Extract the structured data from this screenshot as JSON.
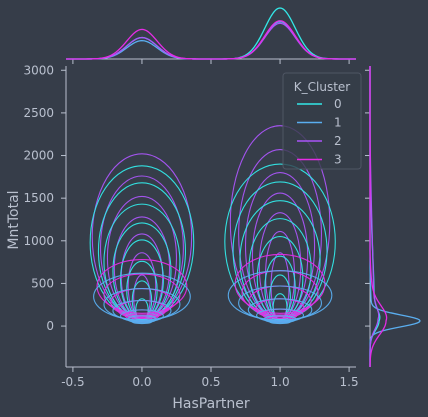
{
  "chart_data": {
    "type": "kde-contour",
    "title": "",
    "xlabel": "HasPartner",
    "ylabel": "MntTotal",
    "xlim": [
      -0.55,
      1.55
    ],
    "ylim": [
      -480,
      3050
    ],
    "x_ticks": [
      -0.5,
      0.0,
      0.5,
      1.0,
      1.5
    ],
    "y_ticks": [
      0,
      500,
      1000,
      1500,
      2000,
      2500,
      3000
    ],
    "x_tick_labels": [
      "-0.5",
      "0.0",
      "0.5",
      "1.0",
      "1.5"
    ],
    "y_tick_labels": [
      "0",
      "500",
      "1000",
      "1500",
      "2000",
      "2500",
      "3000"
    ],
    "grid": false,
    "legend": {
      "title": "K_Cluster",
      "position": "top-right",
      "entries": [
        "0",
        "1",
        "2",
        "3"
      ]
    },
    "series": [
      {
        "name": "0",
        "color": "#33e8e8",
        "groups": [
          {
            "x": 0.0,
            "levels": [
              [
                0.75,
                80,
                1880
              ],
              [
                0.63,
                80,
                1680
              ],
              [
                0.55,
                80,
                1430
              ],
              [
                0.42,
                80,
                1210
              ],
              [
                0.31,
                80,
                1010
              ],
              [
                0.22,
                80,
                760
              ],
              [
                0.14,
                80,
                530
              ],
              [
                0.09,
                60,
                320
              ]
            ]
          },
          {
            "x": 1.0,
            "levels": [
              [
                0.8,
                80,
                1900
              ],
              [
                0.68,
                80,
                1690
              ],
              [
                0.58,
                80,
                1470
              ],
              [
                0.45,
                80,
                1260
              ],
              [
                0.33,
                80,
                1050
              ],
              [
                0.22,
                80,
                820
              ],
              [
                0.15,
                80,
                600
              ],
              [
                0.1,
                60,
                380
              ]
            ]
          }
        ]
      },
      {
        "name": "1",
        "color": "#5aaef0",
        "groups": [
          {
            "x": 0.0,
            "levels": [
              [
                0.7,
                70,
                620
              ],
              [
                0.55,
                70,
                440
              ],
              [
                0.42,
                60,
                300
              ],
              [
                0.31,
                50,
                190
              ],
              [
                0.21,
                40,
                120
              ],
              [
                0.14,
                30,
                70
              ]
            ]
          },
          {
            "x": 1.0,
            "levels": [
              [
                0.75,
                70,
                650
              ],
              [
                0.6,
                70,
                470
              ],
              [
                0.46,
                60,
                320
              ],
              [
                0.34,
                50,
                200
              ],
              [
                0.23,
                40,
                120
              ],
              [
                0.15,
                30,
                70
              ]
            ]
          }
        ]
      },
      {
        "name": "2",
        "color": "#aa55f8",
        "groups": [
          {
            "x": 0.0,
            "levels": [
              [
                0.72,
                80,
                2020
              ],
              [
                0.6,
                80,
                1760
              ],
              [
                0.5,
                80,
                1520
              ],
              [
                0.4,
                80,
                1280
              ],
              [
                0.3,
                80,
                1080
              ],
              [
                0.2,
                80,
                860
              ],
              [
                0.12,
                70,
                600
              ]
            ]
          },
          {
            "x": 1.0,
            "levels": [
              [
                0.72,
                80,
                2350
              ],
              [
                0.6,
                80,
                2070
              ],
              [
                0.5,
                80,
                1800
              ],
              [
                0.4,
                80,
                1560
              ],
              [
                0.3,
                80,
                1330
              ],
              [
                0.21,
                80,
                1110
              ],
              [
                0.13,
                70,
                860
              ]
            ]
          }
        ]
      },
      {
        "name": "3",
        "color": "#e52ce5",
        "groups": [
          {
            "x": 0.0,
            "levels": [
              [
                0.65,
                150,
                780
              ],
              [
                0.55,
                130,
                610
              ],
              [
                0.45,
                110,
                440
              ],
              [
                0.35,
                90,
                300
              ],
              [
                0.25,
                70,
                190
              ],
              [
                0.15,
                50,
                100
              ]
            ]
          },
          {
            "x": 1.0,
            "levels": [
              [
                0.65,
                150,
                840
              ],
              [
                0.55,
                130,
                650
              ],
              [
                0.45,
                110,
                470
              ],
              [
                0.35,
                90,
                320
              ],
              [
                0.25,
                70,
                200
              ],
              [
                0.15,
                50,
                110
              ]
            ]
          }
        ]
      }
    ],
    "marginal_x": [
      {
        "name": "0",
        "peaks": [
          {
            "x": 0.0,
            "height": 0.42
          },
          {
            "x": 1.0,
            "height": 1.0
          }
        ]
      },
      {
        "name": "1",
        "peaks": [
          {
            "x": 0.0,
            "height": 0.36
          },
          {
            "x": 1.0,
            "height": 0.73
          }
        ]
      },
      {
        "name": "2",
        "peaks": [
          {
            "x": 0.0,
            "height": 0.42
          },
          {
            "x": 1.0,
            "height": 0.7
          }
        ]
      },
      {
        "name": "3",
        "peaks": [
          {
            "x": 0.0,
            "height": 0.58
          },
          {
            "x": 1.0,
            "height": 0.75
          }
        ]
      }
    ],
    "marginal_y": [
      {
        "name": "0",
        "peak_y": 60,
        "spread": 110,
        "height": 0.18,
        "tail_height": 0.12,
        "tail_extent": 2000
      },
      {
        "name": "1",
        "peak_y": 60,
        "spread": 70,
        "height": 1.0,
        "tail_height": 0.05,
        "tail_extent": 700
      },
      {
        "name": "2",
        "peak_y": 80,
        "spread": 120,
        "height": 0.16,
        "tail_height": 0.1,
        "tail_extent": 2400
      },
      {
        "name": "3",
        "peak_y": 60,
        "spread": 160,
        "height": 0.32,
        "tail_height": 0.1,
        "tail_extent": 900
      }
    ]
  }
}
